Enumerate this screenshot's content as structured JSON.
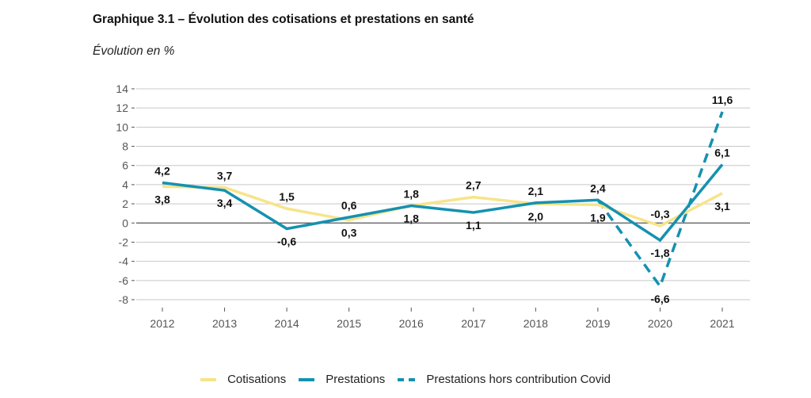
{
  "title": "Graphique 3.1 – Évolution des cotisations et prestations en santé",
  "subtitle": "Évolution en %",
  "colors": {
    "cotisations": "#f7e48a",
    "prestations": "#1591b0",
    "grid": "#c8c8c8",
    "zero": "#555555"
  },
  "legend": [
    {
      "label": "Cotisations",
      "style": "solid",
      "color": "#f7e48a"
    },
    {
      "label": "Prestations",
      "style": "solid",
      "color": "#1591b0"
    },
    {
      "label": "Prestations hors contribution Covid",
      "style": "dashed",
      "color": "#1591b0"
    }
  ],
  "chart_data": {
    "type": "line",
    "title": "Graphique 3.1 – Évolution des cotisations et prestations en santé",
    "subtitle": "Évolution en %",
    "xlabel": "",
    "ylabel": "Évolution en %",
    "x": [
      "2012",
      "2013",
      "2014",
      "2015",
      "2016",
      "2017",
      "2018",
      "2019",
      "2020",
      "2021"
    ],
    "ylim": [
      -8,
      14
    ],
    "yticks": [
      14,
      12,
      10,
      8,
      6,
      4,
      2,
      0,
      -2,
      -4,
      -6,
      -8
    ],
    "ytick_labels": [
      "14",
      "12",
      "10",
      "8",
      "6",
      "4",
      "2",
      "0",
      "-2",
      "-4",
      "-6",
      "-8"
    ],
    "grid": true,
    "legend_position": "bottom",
    "series": [
      {
        "name": "Cotisations",
        "style": "solid",
        "color": "#f7e48a",
        "values": [
          3.8,
          3.7,
          1.5,
          0.3,
          1.8,
          2.7,
          2.0,
          1.9,
          -0.3,
          3.1
        ],
        "labels": [
          "3,8",
          "3,7",
          "1,5",
          "0,3",
          "1,8",
          "2,7",
          "2,0",
          "1,9",
          "-0,3",
          "3,1"
        ],
        "label_pos": [
          "below",
          "above",
          "above",
          "below",
          "below",
          "above",
          "below",
          "below",
          "above",
          "below"
        ]
      },
      {
        "name": "Prestations",
        "style": "solid",
        "color": "#1591b0",
        "values": [
          4.2,
          3.4,
          -0.6,
          0.6,
          1.8,
          1.1,
          2.1,
          2.4,
          -1.8,
          6.1
        ],
        "labels": [
          "4,2",
          "3,4",
          "-0,6",
          "0,6",
          "1,8",
          "1,1",
          "2,1",
          "2,4",
          "-1,8",
          "6,1"
        ],
        "label_pos": [
          "above",
          "below",
          "below",
          "above",
          "above",
          "below",
          "above",
          "above",
          "below",
          "above"
        ]
      },
      {
        "name": "Prestations hors contribution Covid",
        "style": "dashed",
        "color": "#1591b0",
        "values": [
          null,
          null,
          null,
          null,
          null,
          null,
          null,
          2.4,
          -6.6,
          11.6
        ],
        "labels": [
          null,
          null,
          null,
          null,
          null,
          null,
          null,
          null,
          "-6,6",
          "11,6"
        ],
        "label_pos": [
          null,
          null,
          null,
          null,
          null,
          null,
          null,
          null,
          "below",
          "above"
        ]
      }
    ]
  }
}
